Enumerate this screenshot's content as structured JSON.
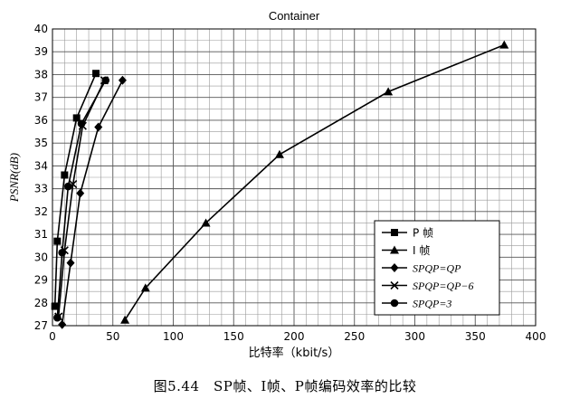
{
  "chart_data": {
    "type": "line",
    "title": "Container",
    "xlabel": "比特率（kbit/s）",
    "ylabel": "PSNR(dB)",
    "xlim": [
      0,
      400
    ],
    "ylim": [
      27,
      40
    ],
    "xticks": [
      "0",
      "50",
      "100",
      "150",
      "200",
      "250",
      "300",
      "350",
      "400"
    ],
    "yticks": [
      "27",
      "28",
      "29",
      "30",
      "31",
      "32",
      "33",
      "34",
      "35",
      "36",
      "37",
      "38",
      "39",
      "40"
    ],
    "grid": true,
    "legend_position": "bottom-right",
    "series": [
      {
        "name": "P 帧",
        "marker": "square",
        "x": [
          2,
          4,
          10,
          20,
          36
        ],
        "y": [
          27.85,
          30.7,
          33.6,
          36.1,
          38.05
        ]
      },
      {
        "name": "I 帧",
        "marker": "triangle",
        "x": [
          60,
          77,
          127,
          188,
          278,
          374
        ],
        "y": [
          27.25,
          28.65,
          31.5,
          34.5,
          37.25,
          39.3
        ]
      },
      {
        "name": "SPQP=QP",
        "marker": "diamond",
        "x": [
          8,
          15,
          23,
          38,
          58
        ],
        "y": [
          27.05,
          29.75,
          32.8,
          35.7,
          37.75
        ]
      },
      {
        "name": "SPQP=QP−6",
        "marker": "x",
        "x": [
          5,
          10,
          17,
          25,
          43
        ],
        "y": [
          27.4,
          30.3,
          33.2,
          35.75,
          37.75
        ]
      },
      {
        "name": "SPQP=3",
        "marker": "circle",
        "x": [
          4,
          8,
          13,
          24,
          44
        ],
        "y": [
          27.35,
          30.2,
          33.1,
          35.85,
          37.75
        ]
      }
    ]
  },
  "caption": "图5.44　SP帧、I帧、P帧编码效率的比较"
}
